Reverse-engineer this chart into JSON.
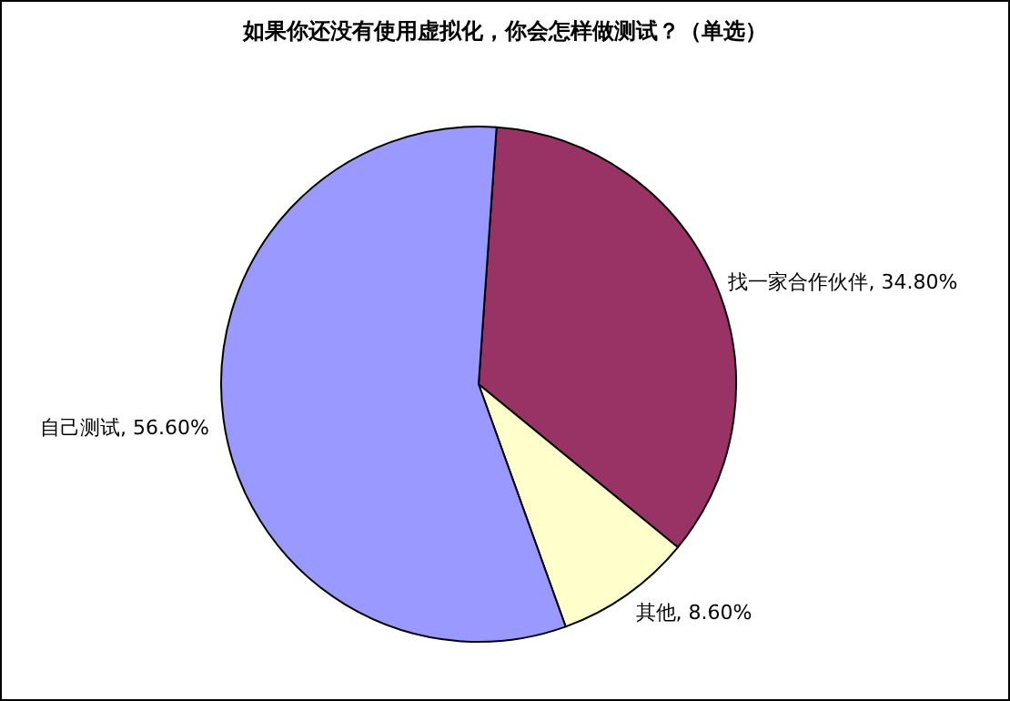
{
  "chart_data": {
    "type": "pie",
    "title": "如果你还没有使用虚拟化，你会怎样做测试？（单选）",
    "categories": [
      "找一家合作伙伴",
      "其他",
      "自己测试"
    ],
    "values": [
      34.8,
      8.6,
      56.6
    ],
    "value_labels": [
      "34.80%",
      "8.60%",
      "56.60%"
    ],
    "colors": [
      "#993366",
      "#ffffcc",
      "#9999ff"
    ],
    "legend": false
  }
}
